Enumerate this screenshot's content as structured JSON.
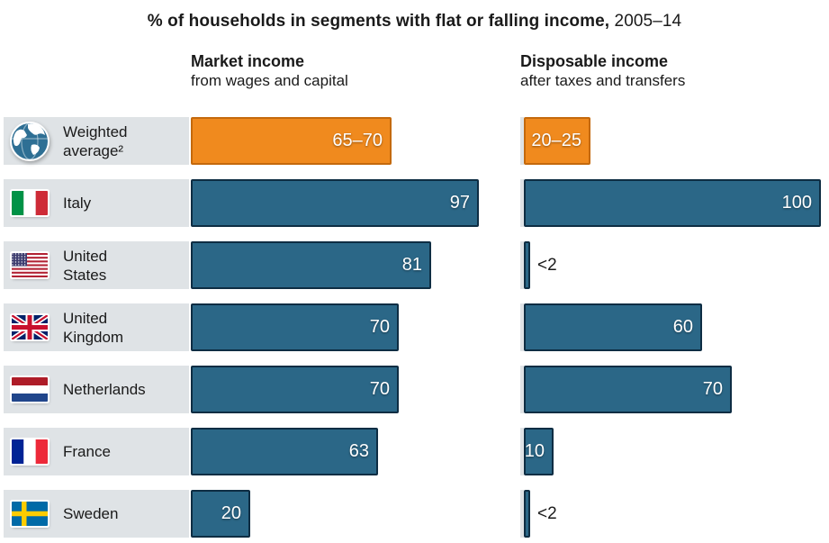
{
  "title": {
    "main": "% of households in segments with flat or falling income,",
    "suffix": "2005–14"
  },
  "columns": {
    "market": {
      "title": "Market income",
      "subtitle": "from wages and capital"
    },
    "disposable": {
      "title": "Disposable income",
      "subtitle": "after taxes and transfers"
    }
  },
  "colors": {
    "bar": "#2B6787",
    "bar_border": "#0E2D43",
    "highlight_bar": "#F08A1E",
    "highlight_border": "#C4690C",
    "row_label_bg": "#DFE3E6",
    "text": "#1A1A1A",
    "value_text": "#FFFFFF"
  },
  "rows": [
    {
      "label": "Weighted\naverage²",
      "flag": "globe-icon",
      "highlight": true,
      "market": {
        "value": 67.5,
        "label": "65–70"
      },
      "disposable": {
        "value": 22.5,
        "label": "20–25"
      }
    },
    {
      "label": "Italy",
      "flag": "italy-flag-icon",
      "highlight": false,
      "market": {
        "value": 97,
        "label": "97"
      },
      "disposable": {
        "value": 100,
        "label": "100"
      }
    },
    {
      "label": "United\nStates",
      "flag": "usa-flag-icon",
      "highlight": false,
      "market": {
        "value": 81,
        "label": "81"
      },
      "disposable": {
        "value": 2,
        "label": "<2",
        "label_outside": true
      }
    },
    {
      "label": "United\nKingdom",
      "flag": "uk-flag-icon",
      "highlight": false,
      "market": {
        "value": 70,
        "label": "70"
      },
      "disposable": {
        "value": 60,
        "label": "60"
      }
    },
    {
      "label": "Netherlands",
      "flag": "netherlands-flag-icon",
      "highlight": false,
      "market": {
        "value": 70,
        "label": "70"
      },
      "disposable": {
        "value": 70,
        "label": "70"
      }
    },
    {
      "label": "France",
      "flag": "france-flag-icon",
      "highlight": false,
      "market": {
        "value": 63,
        "label": "63"
      },
      "disposable": {
        "value": 10,
        "label": "10"
      }
    },
    {
      "label": "Sweden",
      "flag": "sweden-flag-icon",
      "highlight": false,
      "market": {
        "value": 20,
        "label": "20"
      },
      "disposable": {
        "value": 2,
        "label": "<2",
        "label_outside": true
      }
    }
  ],
  "chart_data": {
    "type": "bar",
    "orientation": "horizontal",
    "title": "% of households in segments with flat or falling income, 2005–14",
    "categories": [
      "Weighted average²",
      "Italy",
      "United States",
      "United Kingdom",
      "Netherlands",
      "France",
      "Sweden"
    ],
    "series": [
      {
        "name": "Market income (from wages and capital)",
        "values": [
          67.5,
          97,
          81,
          70,
          70,
          63,
          20
        ],
        "labels": [
          "65–70",
          "97",
          "81",
          "70",
          "70",
          "63",
          "20"
        ]
      },
      {
        "name": "Disposable income (after taxes and transfers)",
        "values": [
          22.5,
          100,
          2,
          60,
          70,
          10,
          2
        ],
        "labels": [
          "20–25",
          "100",
          "<2",
          "60",
          "70",
          "10",
          "<2"
        ]
      }
    ],
    "xlim": [
      0,
      100
    ],
    "value_unit": "% of households",
    "legend_position": "column headers above each bar group",
    "grid": false,
    "notes": "Weighted average row highlighted in orange; '65–70' and '20–25' are range labels; values under 2 shown as '<2' outside the bar"
  }
}
